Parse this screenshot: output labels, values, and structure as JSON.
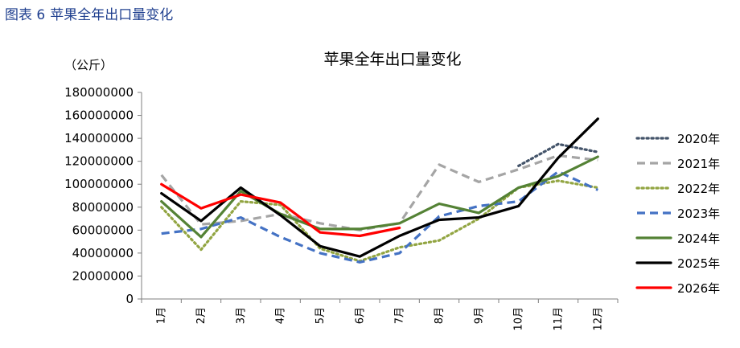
{
  "figure": {
    "label": "图表 6",
    "caption": "苹果全年出口量变化"
  },
  "chart_data": {
    "type": "line",
    "title": "苹果全年出口量变化",
    "unit": "（公斤）",
    "categories": [
      "1月",
      "2月",
      "3月",
      "4月",
      "5月",
      "6月",
      "7月",
      "8月",
      "9月",
      "10月",
      "11月",
      "12月"
    ],
    "ylim": [
      0,
      180000000
    ],
    "yticks": [
      "0",
      "20000000",
      "40000000",
      "60000000",
      "80000000",
      "100000000",
      "120000000",
      "140000000",
      "160000000",
      "180000000"
    ],
    "grid": false,
    "legend_position": "right",
    "series": [
      {
        "name": "2020年",
        "color": "#44546a",
        "dash": "dot",
        "values": [
          null,
          null,
          null,
          null,
          null,
          null,
          null,
          null,
          null,
          116000000,
          135000000,
          128000000
        ]
      },
      {
        "name": "2021年",
        "color": "#a5a5a5",
        "dash": "dash",
        "values": [
          108000000,
          65000000,
          68000000,
          74000000,
          66000000,
          60000000,
          66000000,
          117000000,
          102000000,
          113000000,
          125000000,
          121000000
        ]
      },
      {
        "name": "2022年",
        "color": "#92a542",
        "dash": "dot",
        "values": [
          80000000,
          43000000,
          85000000,
          82000000,
          44000000,
          33000000,
          45000000,
          51000000,
          70000000,
          97000000,
          103000000,
          97000000
        ]
      },
      {
        "name": "2023年",
        "color": "#4472c4",
        "dash": "dash",
        "values": [
          57000000,
          61000000,
          71000000,
          54000000,
          40000000,
          32000000,
          40000000,
          72000000,
          81000000,
          85000000,
          111000000,
          95000000
        ]
      },
      {
        "name": "2024年",
        "color": "#548235",
        "dash": "solid",
        "values": [
          85000000,
          54000000,
          94000000,
          74000000,
          61000000,
          61000000,
          66000000,
          83000000,
          75000000,
          97000000,
          107000000,
          124000000
        ]
      },
      {
        "name": "2025年",
        "color": "#000000",
        "dash": "solid",
        "values": [
          92000000,
          68000000,
          97000000,
          73000000,
          46000000,
          37000000,
          55000000,
          69000000,
          71000000,
          81000000,
          123000000,
          157000000
        ]
      },
      {
        "name": "2026年",
        "color": "#ff0000",
        "dash": "solid",
        "values": [
          100000000,
          79000000,
          91000000,
          84000000,
          58000000,
          55000000,
          62000000,
          null,
          null,
          null,
          null,
          null
        ]
      }
    ]
  }
}
